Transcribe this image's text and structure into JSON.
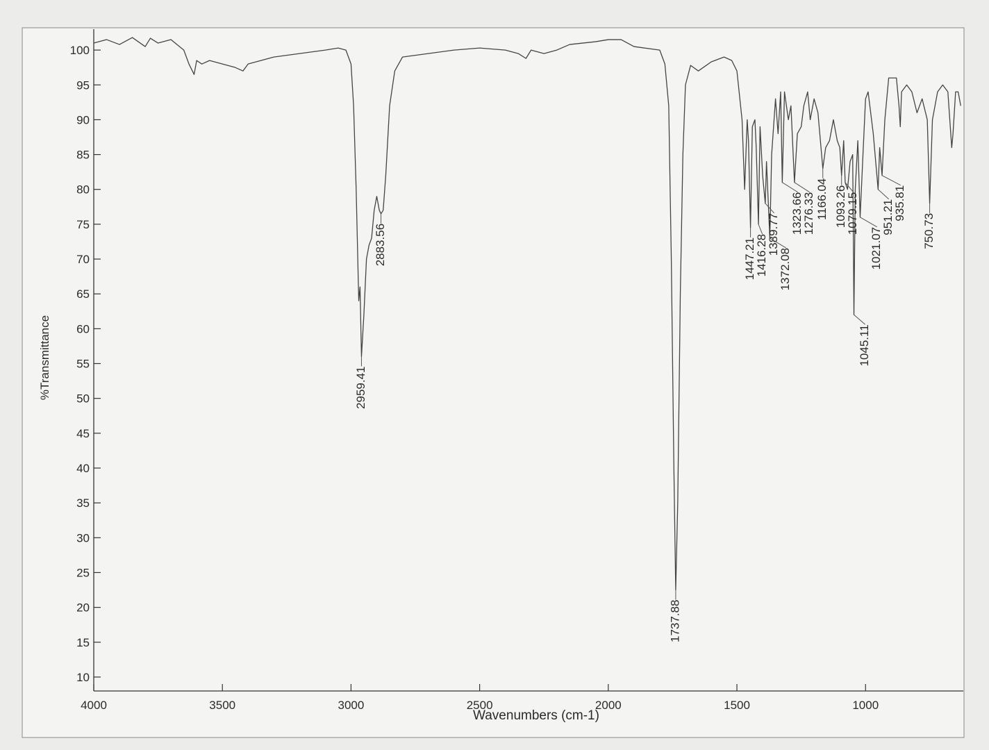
{
  "chart_data": {
    "type": "line",
    "x_label": "Wavenumbers (cm-1)",
    "y_label": "%Transmittance",
    "xlim": [
      4000,
      620
    ],
    "ylim": [
      8,
      103
    ],
    "xticks": [
      4000,
      3500,
      3000,
      2500,
      2000,
      1500,
      1000
    ],
    "yticks": [
      10,
      15,
      20,
      25,
      30,
      35,
      40,
      45,
      50,
      55,
      60,
      65,
      70,
      75,
      80,
      85,
      90,
      95,
      100
    ],
    "color": "#444444",
    "x": [
      4000,
      3950,
      3900,
      3850,
      3800,
      3780,
      3750,
      3700,
      3650,
      3630,
      3610,
      3600,
      3580,
      3550,
      3500,
      3450,
      3420,
      3400,
      3350,
      3300,
      3200,
      3100,
      3050,
      3020,
      3000,
      2990,
      2980,
      2970,
      2965,
      2959.41,
      2950,
      2940,
      2930,
      2920,
      2910,
      2900,
      2890,
      2883.56,
      2875,
      2865,
      2850,
      2830,
      2800,
      2700,
      2600,
      2500,
      2400,
      2350,
      2320,
      2300,
      2250,
      2200,
      2150,
      2100,
      2050,
      2000,
      1950,
      1900,
      1800,
      1780,
      1765,
      1755,
      1745,
      1737.88,
      1730,
      1720,
      1710,
      1700,
      1680,
      1650,
      1600,
      1550,
      1520,
      1500,
      1480,
      1470,
      1460,
      1455,
      1447.21,
      1440,
      1430,
      1425,
      1416.28,
      1410,
      1400,
      1395,
      1389.77,
      1385,
      1372.08,
      1365,
      1350,
      1340,
      1330,
      1323.66,
      1315,
      1300,
      1290,
      1276.33,
      1265,
      1250,
      1240,
      1225,
      1215,
      1200,
      1185,
      1166.04,
      1155,
      1140,
      1125,
      1110,
      1100,
      1093.26,
      1085,
      1079.15,
      1070,
      1060,
      1050,
      1045.11,
      1040,
      1030,
      1021.07,
      1010,
      1000,
      990,
      970,
      951.21,
      945,
      935.81,
      925,
      910,
      880,
      870,
      865,
      860,
      840,
      820,
      800,
      780,
      760,
      750.73,
      740,
      720,
      700,
      680,
      665,
      660,
      650,
      640,
      630
    ],
    "values": [
      101,
      101.5,
      100.8,
      101.8,
      100.5,
      101.7,
      101,
      101.5,
      100,
      98,
      96.5,
      98.5,
      98,
      98.5,
      98,
      97.5,
      97,
      98,
      98.5,
      99,
      99.5,
      100,
      100.3,
      100,
      98,
      92,
      80,
      64,
      66,
      56,
      62,
      70,
      72,
      73,
      77,
      79,
      77,
      76.5,
      77,
      82,
      92,
      97,
      99,
      99.5,
      100,
      100.3,
      100,
      99.5,
      98.8,
      100,
      99.5,
      100,
      100.8,
      101,
      101.2,
      101.5,
      101.5,
      100.5,
      100,
      98,
      92,
      70,
      40,
      22.5,
      35,
      65,
      85,
      95,
      97.8,
      97,
      98.3,
      99,
      98.5,
      97,
      90,
      80,
      90,
      87,
      74.5,
      89,
      90,
      86,
      75,
      89,
      82,
      80,
      78,
      84,
      73,
      85,
      93,
      88,
      94,
      81,
      94,
      90,
      92,
      81,
      88,
      89,
      92,
      94,
      90,
      93,
      91,
      83,
      86,
      87,
      90,
      87,
      86,
      82,
      87,
      81,
      80,
      84,
      85,
      62,
      80,
      87,
      76,
      85,
      93,
      94,
      88,
      80,
      86,
      82,
      90,
      96,
      96,
      92,
      89,
      94,
      95,
      94,
      91,
      93,
      90,
      78,
      90,
      94,
      95,
      94,
      86,
      88,
      94,
      94,
      92
    ],
    "peaks": [
      {
        "x": 2959.41,
        "y": 56
      },
      {
        "x": 2883.56,
        "y": 76.5
      },
      {
        "x": 1737.88,
        "y": 22.5
      },
      {
        "x": 1447.21,
        "y": 74.5
      },
      {
        "x": 1416.28,
        "y": 75
      },
      {
        "x": 1389.77,
        "y": 78
      },
      {
        "x": 1372.08,
        "y": 73
      },
      {
        "x": 1323.66,
        "y": 81
      },
      {
        "x": 1276.33,
        "y": 81
      },
      {
        "x": 1166.04,
        "y": 83
      },
      {
        "x": 1093.26,
        "y": 82
      },
      {
        "x": 1079.15,
        "y": 81
      },
      {
        "x": 1045.11,
        "y": 62
      },
      {
        "x": 1021.07,
        "y": 76
      },
      {
        "x": 951.21,
        "y": 80
      },
      {
        "x": 935.81,
        "y": 82
      },
      {
        "x": 750.73,
        "y": 78
      }
    ]
  }
}
